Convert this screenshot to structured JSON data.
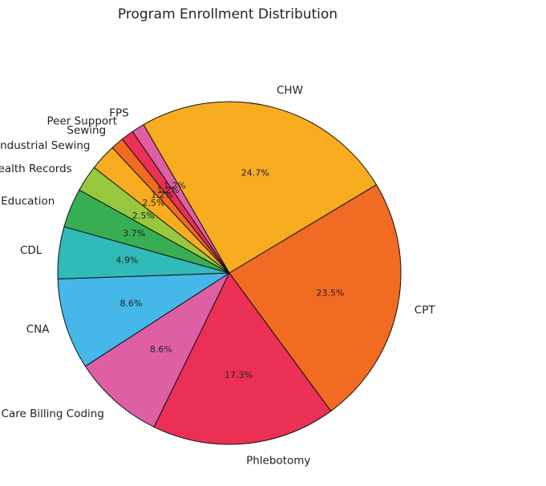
{
  "chart_data": {
    "type": "pie",
    "title": "Program Enrollment Distribution",
    "slices": [
      {
        "label": "CHW",
        "value": 24.7,
        "pct_label": "24.7%",
        "color": "#F8AC1F"
      },
      {
        "label": "CPT",
        "value": 23.5,
        "pct_label": "23.5%",
        "color": "#F26B22"
      },
      {
        "label": "Phlebotomy",
        "value": 17.3,
        "pct_label": "17.3%",
        "color": "#EB2F55"
      },
      {
        "label": "Health Care Billing Coding",
        "value": 8.6,
        "pct_label": "8.6%",
        "color": "#DE5FA4"
      },
      {
        "label": "CNA",
        "value": 8.6,
        "pct_label": "8.6%",
        "color": "#45B7E8"
      },
      {
        "label": "CDL",
        "value": 4.9,
        "pct_label": "4.9%",
        "color": "#30BAB8"
      },
      {
        "label": "Early Childhood Education",
        "value": 3.7,
        "pct_label": "3.7%",
        "color": "#38AE52"
      },
      {
        "label": "Electronic Health Records",
        "value": 2.5,
        "pct_label": "2.5%",
        "color": "#97C83E"
      },
      {
        "label": "Industrial Sewing",
        "value": 2.5,
        "pct_label": "2.5%",
        "color": "#F8AC1F"
      },
      {
        "label": "Sewing",
        "value": 1.2,
        "pct_label": "1.2%",
        "color": "#F26B22"
      },
      {
        "label": "Peer Support",
        "value": 1.2,
        "pct_label": "1.2%",
        "color": "#EB2F55"
      },
      {
        "label": "FPS",
        "value": 1.2,
        "pct_label": "1.2%",
        "color": "#DE5FA4"
      }
    ]
  }
}
